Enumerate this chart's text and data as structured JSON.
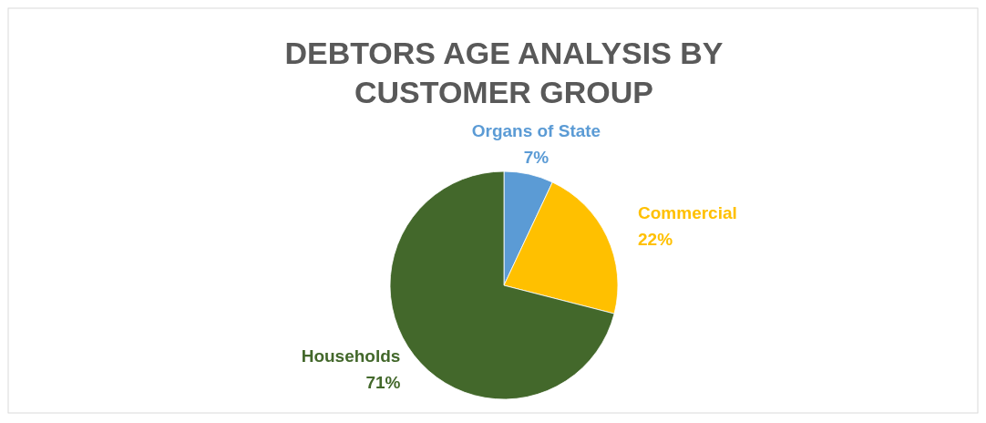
{
  "chart_data": {
    "type": "pie",
    "title": "DEBTORS AGE ANALYSIS BY CUSTOMER GROUP",
    "categories": [
      "Organs of State",
      "Commercial",
      "Households"
    ],
    "values": [
      7,
      22,
      71
    ],
    "colors": [
      "#5b9bd5",
      "#ffc000",
      "#43682b"
    ],
    "value_labels": [
      "7%",
      "22%",
      "71%"
    ]
  }
}
